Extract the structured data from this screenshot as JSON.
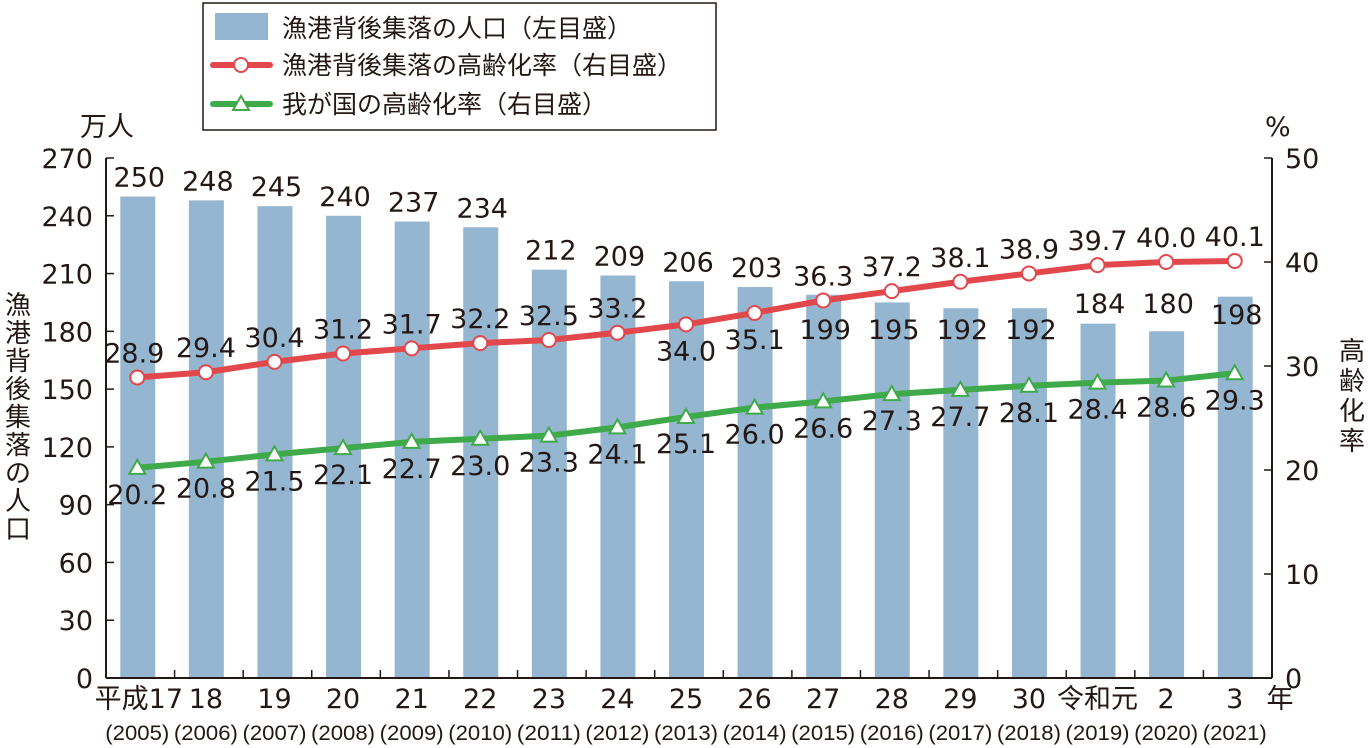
{
  "chart_data": {
    "type": "bar+line",
    "categories": [
      "平成17",
      "18",
      "19",
      "20",
      "21",
      "22",
      "23",
      "24",
      "25",
      "26",
      "27",
      "28",
      "29",
      "30",
      "令和元",
      "2",
      "3"
    ],
    "category_years": [
      "(2005)",
      "(2006)",
      "(2007)",
      "(2008)",
      "(2009)",
      "(2010)",
      "(2011)",
      "(2012)",
      "(2013)",
      "(2014)",
      "(2015)",
      "(2016)",
      "(2017)",
      "(2018)",
      "(2019)",
      "(2020)",
      "(2021)"
    ],
    "x_unit": "年",
    "left_axis": {
      "unit": "万人",
      "label": "漁港背後集落の人口",
      "range": [
        0,
        270
      ],
      "ticks": [
        0,
        30,
        60,
        90,
        120,
        150,
        180,
        210,
        240,
        270
      ]
    },
    "right_axis": {
      "unit": "%",
      "label": "高齢化率",
      "range": [
        0,
        50
      ],
      "ticks": [
        0,
        10,
        20,
        30,
        40,
        50
      ]
    },
    "series": [
      {
        "name": "漁港背後集落の人口（左目盛）",
        "type": "bar",
        "axis": "left",
        "color": "#95b6d1",
        "values": [
          250,
          248,
          245,
          240,
          237,
          234,
          212,
          209,
          206,
          203,
          199,
          195,
          192,
          192,
          184,
          180,
          198
        ]
      },
      {
        "name": "漁港背後集落の高齢化率（右目盛）",
        "type": "line",
        "marker": "circle",
        "axis": "right",
        "color": "#e2474b",
        "values": [
          28.9,
          29.4,
          30.4,
          31.2,
          31.7,
          32.2,
          32.5,
          33.2,
          34.0,
          35.1,
          36.3,
          37.2,
          38.1,
          38.9,
          39.7,
          40.0,
          40.1
        ]
      },
      {
        "name": "我が国の高齢化率（右目盛）",
        "type": "line",
        "marker": "triangle",
        "axis": "right",
        "color": "#3faa4a",
        "values": [
          20.2,
          20.8,
          21.5,
          22.1,
          22.7,
          23.0,
          23.3,
          24.1,
          25.1,
          26.0,
          26.6,
          27.3,
          27.7,
          28.1,
          28.4,
          28.6,
          29.3
        ]
      }
    ],
    "legend": "top-center, boxed",
    "grid": false
  }
}
